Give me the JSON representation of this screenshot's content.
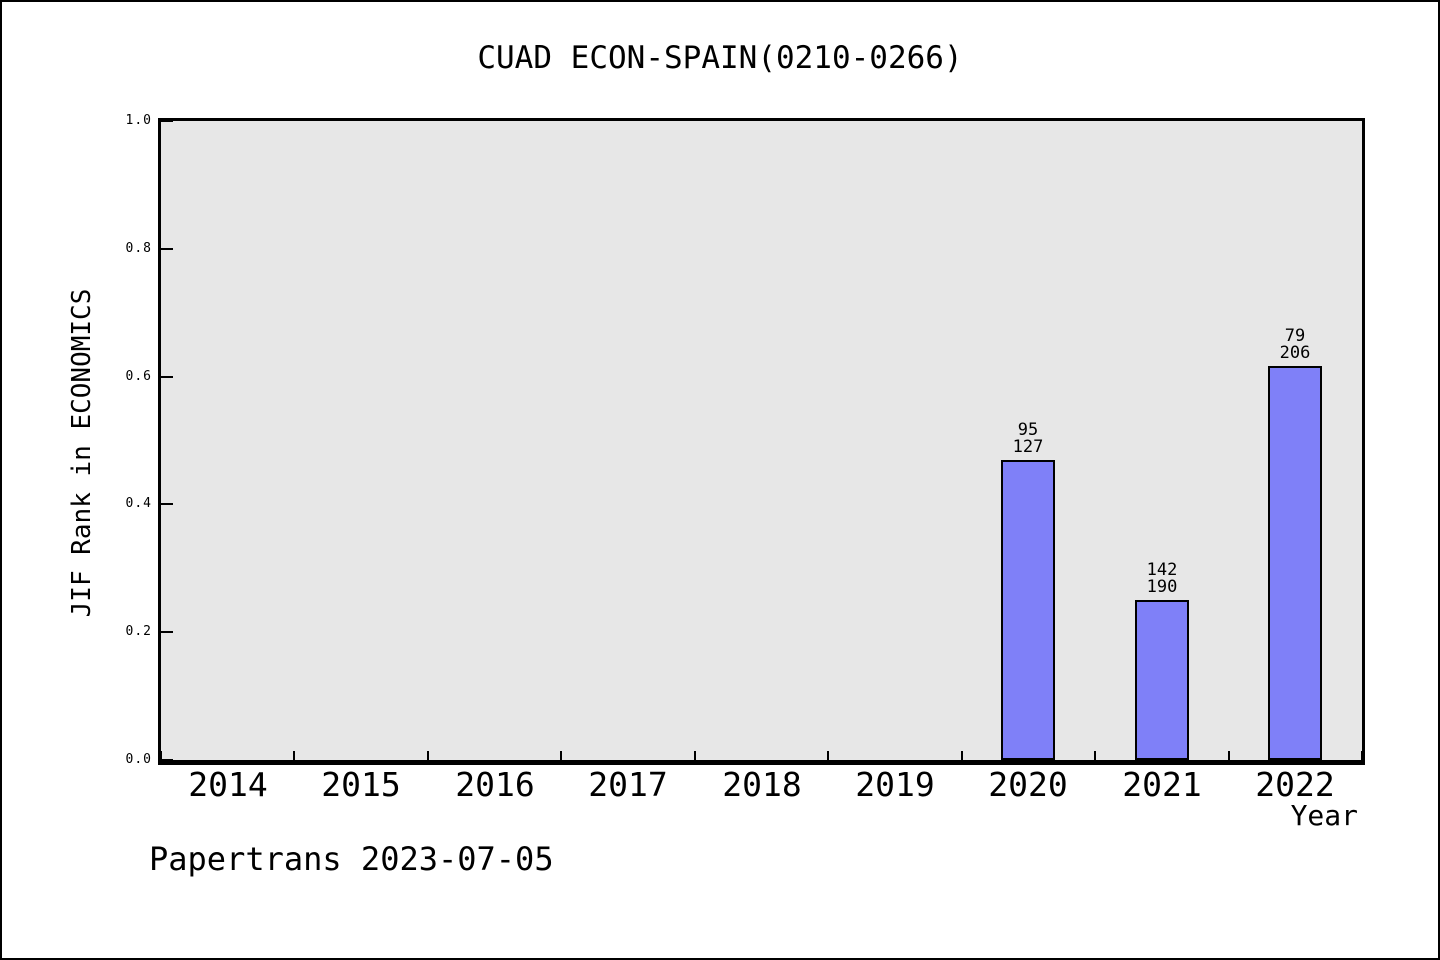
{
  "title": "CUAD ECON-SPAIN(0210-0266)",
  "footer": "Papertrans 2023-07-05",
  "chart_data": {
    "type": "bar",
    "title": "CUAD ECON-SPAIN(0210-0266)",
    "xlabel": "Year",
    "ylabel": "JIF Rank in ECONOMICS",
    "categories": [
      "2014",
      "2015",
      "2016",
      "2017",
      "2018",
      "2019",
      "2020",
      "2021",
      "2022"
    ],
    "values": [
      null,
      null,
      null,
      null,
      null,
      null,
      0.47,
      0.25,
      0.616
    ],
    "bars": [
      {
        "category": "2020",
        "value": 0.47,
        "rank": "95",
        "total": "127"
      },
      {
        "category": "2021",
        "value": 0.25,
        "rank": "142",
        "total": "190"
      },
      {
        "category": "2022",
        "value": 0.616,
        "rank": "79",
        "total": "206"
      }
    ],
    "ylim": [
      0.0,
      1.0
    ],
    "yticks": [
      0.0,
      0.2,
      0.4,
      0.6,
      0.8,
      1.0
    ],
    "ytick_labels": [
      "0.0",
      "0.2",
      "0.4",
      "0.6",
      "0.8",
      "1.0"
    ],
    "grid": false,
    "legend": null,
    "bar_color": "#7f80f8",
    "bar_border_color": "#000000",
    "plot_background": "#e7e7e7",
    "page_background": "#ffffff"
  }
}
